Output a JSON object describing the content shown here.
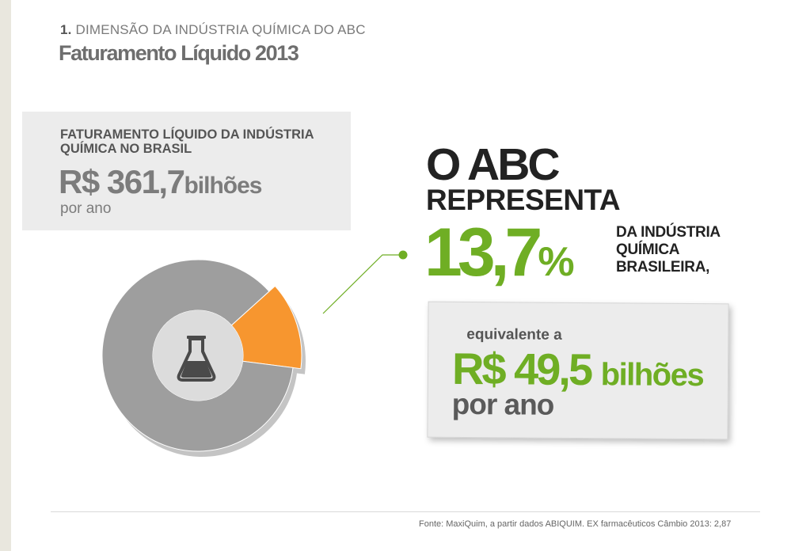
{
  "header": {
    "section_number": "1.",
    "section_title": "DIMENSÃO DA INDÚSTRIA QUÍMICA DO ABC",
    "title": "Faturamento Líquido 2013"
  },
  "brazil_box": {
    "label": "FATURAMENTO LÍQUIDO DA INDÚSTRIA QUÍMICA NO BRASIL",
    "amount": "R$ 361,7",
    "unit": "bilhões",
    "period": "por ano"
  },
  "highlight": {
    "line1": "O ABC",
    "line2": "REPRESENTA",
    "percent_value": "13,7",
    "percent_sign": "%",
    "description": "DA INDÚSTRIA QUÍMICA BRASILEIRA,"
  },
  "equivalent_box": {
    "label": "equivalente a",
    "amount": "R$ 49,5",
    "unit": "bilhões",
    "period": "por ano"
  },
  "source": "Fonte: MaxiQuim,  a partir dados  ABIQUIM. EX  farmacêuticos Câmbio 2013: 2,87",
  "icon": "flask-icon",
  "colors": {
    "accent_green": "#6fae24",
    "highlight_orange": "#f7962f",
    "ring_gray": "#9e9e9e",
    "center_gray": "#dcdcdc"
  },
  "chart_data": {
    "type": "pie",
    "variant": "donut",
    "slices": [
      {
        "value": 13.7,
        "color": "#f7962f"
      },
      {
        "value": 86.3,
        "color": "#9e9e9e"
      }
    ],
    "highlight_slice": 0
  }
}
